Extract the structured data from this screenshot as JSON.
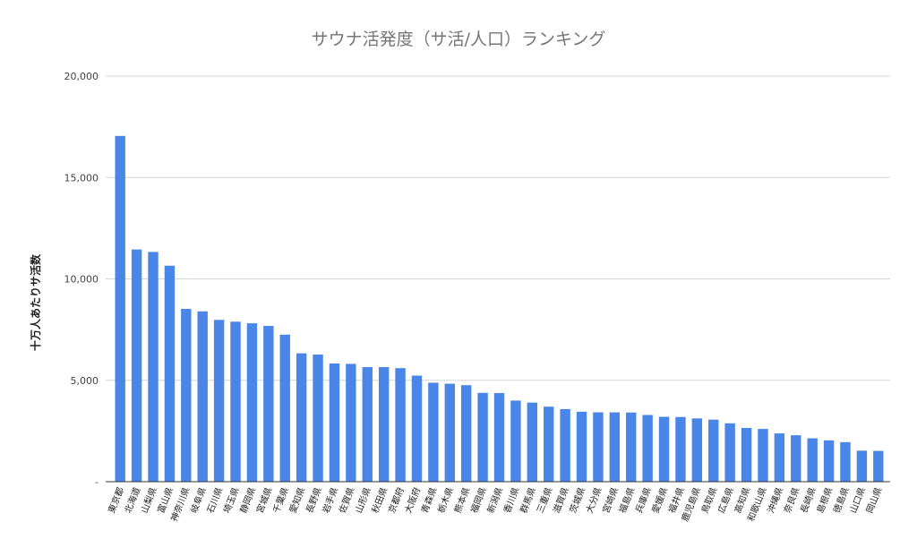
{
  "chart_data": {
    "type": "bar",
    "title": "サウナ活発度（サ活/人口）ランキング",
    "xlabel": "",
    "ylabel": "十万人あたりサ活数",
    "ylim": [
      0,
      20000
    ],
    "yticks": [
      0,
      5000,
      10000,
      15000,
      20000
    ],
    "ytick_labels": [
      "-",
      "5,000",
      "10,000",
      "15,000",
      "20,000"
    ],
    "grid": true,
    "legend": "none",
    "bar_color": "#4a86e8",
    "categories": [
      "東京都",
      "北海道",
      "山梨県",
      "富山県",
      "神奈川県",
      "岐阜県",
      "石川県",
      "埼玉県",
      "静岡県",
      "宮城県",
      "千葉県",
      "愛知県",
      "長野県",
      "岩手県",
      "佐賀県",
      "山形県",
      "秋田県",
      "京都府",
      "大阪府",
      "青森県",
      "栃木県",
      "熊本県",
      "福岡県",
      "新潟県",
      "香川県",
      "群馬県",
      "三重県",
      "滋賀県",
      "茨城県",
      "大分県",
      "宮崎県",
      "福島県",
      "兵庫県",
      "愛媛県",
      "福井県",
      "鹿児島県",
      "鳥取県",
      "広島県",
      "高知県",
      "和歌山県",
      "沖縄県",
      "奈良県",
      "長崎県",
      "島根県",
      "徳島県",
      "山口県",
      "岡山県"
    ],
    "values": [
      17050,
      11450,
      11330,
      10650,
      8520,
      8400,
      7980,
      7890,
      7810,
      7680,
      7250,
      6330,
      6270,
      5830,
      5810,
      5650,
      5650,
      5600,
      5230,
      4880,
      4830,
      4760,
      4380,
      4370,
      4000,
      3900,
      3700,
      3580,
      3450,
      3420,
      3420,
      3410,
      3290,
      3200,
      3190,
      3120,
      3060,
      2880,
      2650,
      2600,
      2380,
      2290,
      2140,
      2040,
      1950,
      1530,
      1520
    ]
  }
}
